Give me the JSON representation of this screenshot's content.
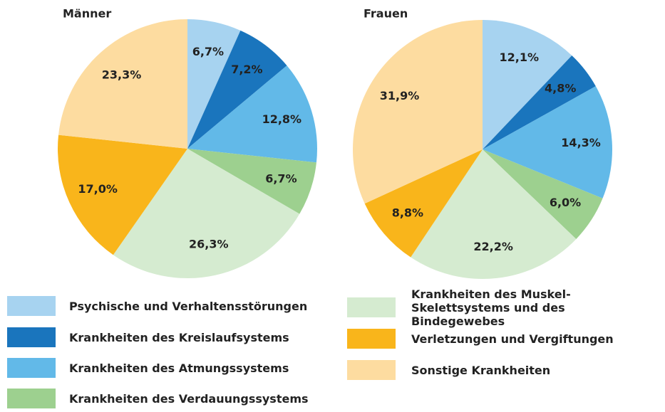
{
  "chart_data": [
    {
      "type": "pie",
      "title": "Männer",
      "categories": [
        "Psychische und Verhaltensstörungen",
        "Krankheiten des Kreislaufsystems",
        "Krankheiten des Atmungssystems",
        "Krankheiten des Verdauungssystems",
        "Krankheiten des Muskel-Skelettsystems und des Bindegewebes",
        "Verletzungen und Vergiftungen",
        "Sonstige Krankheiten"
      ],
      "values": [
        6.7,
        7.2,
        12.8,
        6.7,
        26.3,
        17.0,
        23.3
      ],
      "value_labels": [
        "6,7%",
        "7,2%",
        "12,8%",
        "6,7%",
        "26,3%",
        "17,0%",
        "23,3%"
      ],
      "colors": [
        "#a7d3f0",
        "#1a75bd",
        "#62b9e8",
        "#9dd08f",
        "#d5ebd0",
        "#f9b51b",
        "#fddca0"
      ]
    },
    {
      "type": "pie",
      "title": "Frauen",
      "categories": [
        "Psychische und Verhaltensstörungen",
        "Krankheiten des Kreislaufsystems",
        "Krankheiten des Atmungssystems",
        "Krankheiten des Verdauungssystems",
        "Krankheiten des Muskel-Skelettsystems und des Bindegewebes",
        "Verletzungen und Vergiftungen",
        "Sonstige Krankheiten"
      ],
      "values": [
        12.1,
        4.8,
        14.3,
        6.0,
        22.2,
        8.8,
        31.9
      ],
      "value_labels": [
        "12,1%",
        "4,8%",
        "14,3%",
        "6,0%",
        "22,2%",
        "8,8%",
        "31,9%"
      ],
      "colors": [
        "#a7d3f0",
        "#1a75bd",
        "#62b9e8",
        "#9dd08f",
        "#d5ebd0",
        "#f9b51b",
        "#fddca0"
      ]
    }
  ]
}
